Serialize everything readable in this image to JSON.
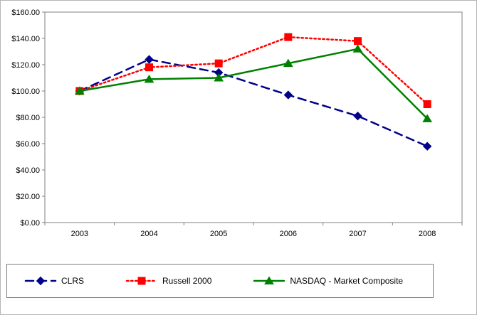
{
  "chart_data": {
    "type": "line",
    "categories": [
      "2003",
      "2004",
      "2005",
      "2006",
      "2007",
      "2008"
    ],
    "series": [
      {
        "name": "CLRS",
        "color": "#00008B",
        "dash": "dashed",
        "marker": "diamond",
        "values": [
          100,
          124,
          114,
          97,
          81,
          58
        ]
      },
      {
        "name": "Russell 2000",
        "color": "#FF0000",
        "dash": "dotted",
        "marker": "square",
        "values": [
          100,
          118,
          121,
          141,
          138,
          90
        ]
      },
      {
        "name": "NASDAQ - Market Composite",
        "color": "#008000",
        "dash": "solid",
        "marker": "triangle",
        "values": [
          100,
          109,
          110,
          121,
          132,
          79
        ]
      }
    ],
    "title": "",
    "xlabel": "",
    "ylabel": "",
    "ylim": [
      0,
      160
    ],
    "y_tick_step": 20,
    "y_tick_labels": [
      "$0.00",
      "$20.00",
      "$40.00",
      "$60.00",
      "$80.00",
      "$100.00",
      "$120.00",
      "$140.00",
      "$160.00"
    ],
    "grid": false,
    "legend_position": "bottom"
  }
}
